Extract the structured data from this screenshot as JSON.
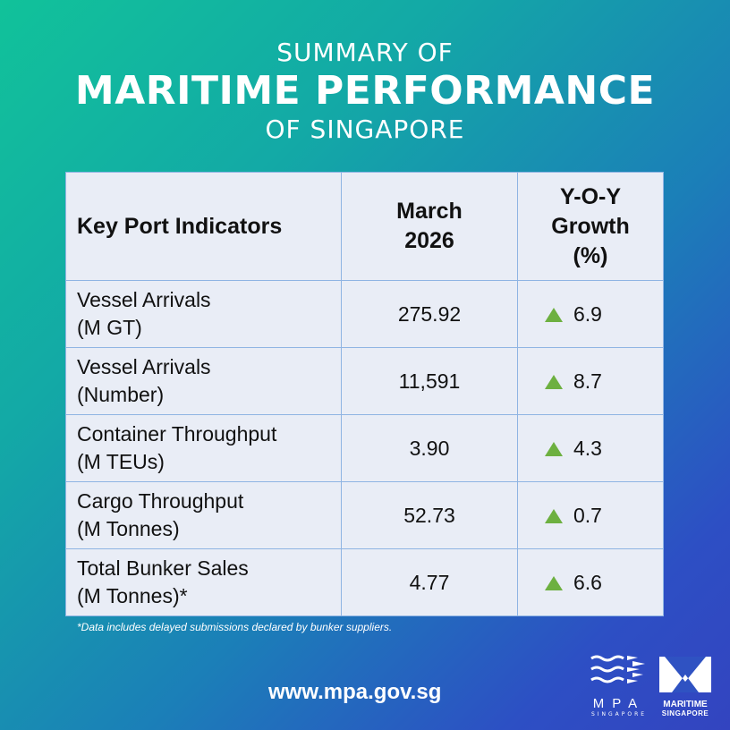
{
  "title": {
    "line1": "SUMMARY OF",
    "line2": "MARITIME PERFORMANCE",
    "line3": "OF SINGAPORE"
  },
  "table": {
    "headers": [
      "Key Port Indicators",
      "March 2026",
      "Y-O-Y Growth (%)"
    ],
    "header_lines": {
      "h2a": "March",
      "h2b": "2026",
      "h3a": "Y-O-Y",
      "h3b": "Growth",
      "h3c": "(%)"
    },
    "rows": [
      {
        "name": "Vessel Arrivals",
        "unit": "(M GT)",
        "value": "275.92",
        "growth": "6.9",
        "trend": "up"
      },
      {
        "name": "Vessel Arrivals",
        "unit": "(Number)",
        "value": "11,591",
        "growth": "8.7",
        "trend": "up"
      },
      {
        "name": "Container Throughput",
        "unit": "(M TEUs)",
        "value": "3.90",
        "growth": "4.3",
        "trend": "up"
      },
      {
        "name": "Cargo Throughput",
        "unit": "(M Tonnes)",
        "value": "52.73",
        "growth": "0.7",
        "trend": "up"
      },
      {
        "name": "Total Bunker Sales",
        "unit": "(M Tonnes)*",
        "value": "4.77",
        "growth": "6.6",
        "trend": "up"
      }
    ]
  },
  "footnote": "*Data includes delayed submissions declared by bunker suppliers.",
  "url": "www.mpa.gov.sg",
  "logos": {
    "mpa": "MPA",
    "mpa_sub": "SINGAPORE",
    "ms1": "MARITIME",
    "ms2": "SINGAPORE"
  },
  "colors": {
    "up_arrow": "#6db040",
    "table_bg": "#e9edf6",
    "border": "#8fb4e3"
  }
}
